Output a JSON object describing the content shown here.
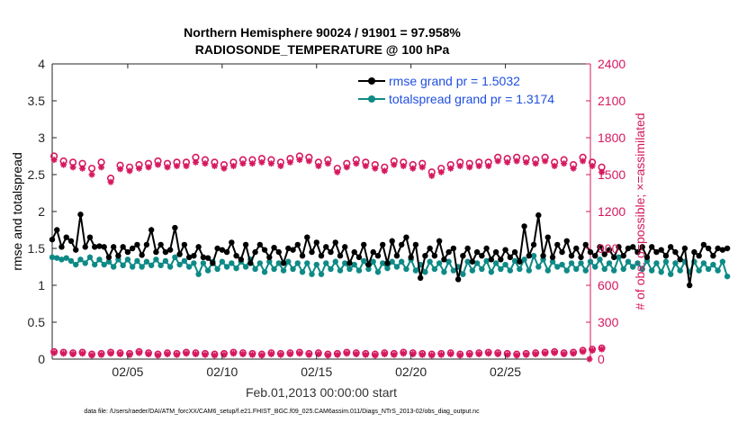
{
  "chart_data": {
    "type": "line",
    "title_line1": "Northern Hemisphere 90024 / 91901 = 97.958%",
    "title_line2": "RADIOSONDE_TEMPERATURE @ 100 hPa",
    "xlabel": "Feb.01,2013 00:00:00 start",
    "ylabel_left": "rmse and totalspread",
    "ylabel_right": "# of obs: o=possible; ×=assimilated",
    "ylim_left": [
      0,
      4
    ],
    "ylim_right": [
      0,
      2400
    ],
    "xlim": [
      1,
      29.5
    ],
    "x_ticks": [
      5,
      10,
      15,
      20,
      25
    ],
    "x_tick_labels": [
      "02/05",
      "02/10",
      "02/15",
      "02/20",
      "02/25"
    ],
    "y_left_ticks": [
      "0",
      "0.5",
      "1",
      "1.5",
      "2",
      "2.5",
      "3",
      "3.5",
      "4"
    ],
    "y_right_ticks": [
      "0",
      "300",
      "600",
      "900",
      "1200",
      "1500",
      "1800",
      "2100",
      "2400"
    ],
    "legend": [
      "rmse grand pr = 1.5032",
      "totalspread grand pr = 1.3174"
    ],
    "colors": {
      "rmse": "#000000",
      "spread": "#0e8a86",
      "obs": "#d6185f",
      "legend_text": "#1f4fe0"
    },
    "x_start": 1.0,
    "x_step": 0.25,
    "rmse": [
      1.62,
      1.75,
      1.52,
      1.65,
      1.6,
      1.48,
      1.96,
      1.52,
      1.65,
      1.52,
      1.53,
      1.52,
      1.38,
      1.52,
      1.4,
      1.52,
      1.45,
      1.5,
      1.55,
      1.41,
      1.55,
      1.75,
      1.45,
      1.55,
      1.45,
      1.48,
      1.78,
      1.42,
      1.55,
      1.38,
      1.4,
      1.52,
      1.38,
      1.37,
      1.3,
      1.5,
      1.48,
      1.45,
      1.58,
      1.4,
      1.35,
      1.55,
      1.3,
      1.45,
      1.55,
      1.48,
      1.38,
      1.51,
      1.45,
      1.3,
      1.5,
      1.48,
      1.55,
      1.4,
      1.65,
      1.45,
      1.58,
      1.4,
      1.52,
      1.45,
      1.58,
      1.4,
      1.52,
      1.3,
      1.45,
      1.38,
      1.55,
      1.28,
      1.45,
      1.4,
      1.55,
      1.3,
      1.6,
      1.4,
      1.55,
      1.65,
      1.38,
      1.55,
      1.1,
      1.4,
      1.5,
      1.4,
      1.6,
      1.35,
      1.45,
      1.5,
      1.08,
      1.4,
      1.5,
      1.32,
      1.45,
      1.4,
      1.5,
      1.35,
      1.45,
      1.35,
      1.48,
      1.38,
      1.45,
      1.32,
      1.8,
      1.4,
      1.55,
      1.95,
      1.4,
      1.65,
      1.38,
      1.55,
      1.45,
      1.6,
      1.4,
      1.5,
      1.38,
      1.55,
      1.45,
      1.4,
      1.52,
      1.42,
      1.48,
      1.38,
      1.52,
      1.4,
      1.5,
      1.52,
      1.45,
      1.52,
      1.38,
      1.52,
      1.45,
      1.48,
      1.4,
      1.52,
      1.45,
      1.35,
      1.5,
      1.0,
      1.45,
      1.4,
      1.55,
      1.5,
      1.4,
      1.5,
      1.48,
      1.5
    ],
    "spread": [
      1.38,
      1.37,
      1.35,
      1.37,
      1.33,
      1.28,
      1.35,
      1.3,
      1.38,
      1.28,
      1.35,
      1.28,
      1.32,
      1.25,
      1.35,
      1.27,
      1.35,
      1.25,
      1.33,
      1.25,
      1.32,
      1.27,
      1.35,
      1.27,
      1.33,
      1.25,
      1.38,
      1.28,
      1.33,
      1.25,
      1.3,
      1.15,
      1.3,
      1.2,
      1.32,
      1.22,
      1.32,
      1.25,
      1.3,
      1.23,
      1.32,
      1.25,
      1.35,
      1.22,
      1.3,
      1.18,
      1.32,
      1.22,
      1.3,
      1.2,
      1.32,
      1.22,
      1.3,
      1.18,
      1.3,
      1.15,
      1.28,
      1.15,
      1.3,
      1.22,
      1.32,
      1.2,
      1.3,
      1.22,
      1.28,
      1.2,
      1.33,
      1.22,
      1.32,
      1.18,
      1.3,
      1.23,
      1.32,
      1.25,
      1.32,
      1.22,
      1.35,
      1.2,
      1.28,
      1.18,
      1.32,
      1.22,
      1.3,
      1.18,
      1.32,
      1.2,
      1.25,
      1.15,
      1.32,
      1.2,
      1.3,
      1.22,
      1.33,
      1.18,
      1.3,
      1.22,
      1.28,
      1.2,
      1.33,
      1.22,
      1.35,
      1.2,
      1.4,
      1.25,
      1.35,
      1.2,
      1.32,
      1.25,
      1.28,
      1.2,
      1.3,
      1.22,
      1.3,
      1.2,
      1.32,
      1.25,
      1.35,
      1.22,
      1.3,
      1.2,
      1.38,
      1.22,
      1.32,
      1.25,
      1.3,
      1.22,
      1.33,
      1.2,
      1.3,
      1.18,
      1.32,
      1.15,
      1.3,
      1.2,
      1.32,
      1.18,
      1.32,
      1.2,
      1.3,
      1.22,
      1.28,
      1.2,
      1.32,
      1.12
    ],
    "obs_x_start": 1.1,
    "obs_step": 0.5,
    "possible": [
      1650,
      1610,
      1600,
      1590,
      1550,
      1600,
      1470,
      1575,
      1560,
      1580,
      1590,
      1610,
      1590,
      1600,
      1600,
      1640,
      1620,
      1600,
      1580,
      1600,
      1620,
      1620,
      1630,
      1620,
      1600,
      1630,
      1650,
      1640,
      1600,
      1620,
      1550,
      1590,
      1620,
      1600,
      1580,
      1560,
      1610,
      1600,
      1580,
      1590,
      1520,
      1550,
      1580,
      1600,
      1590,
      1600,
      1600,
      1640,
      1630,
      1640,
      1630,
      1620,
      1640,
      1600,
      1620,
      1580,
      1640,
      1600,
      1560
    ],
    "assimilated": [
      1620,
      1580,
      1560,
      1550,
      1500,
      1560,
      1440,
      1545,
      1530,
      1550,
      1560,
      1580,
      1560,
      1570,
      1570,
      1600,
      1590,
      1570,
      1550,
      1570,
      1590,
      1590,
      1600,
      1590,
      1570,
      1600,
      1620,
      1610,
      1570,
      1590,
      1520,
      1560,
      1590,
      1570,
      1550,
      1530,
      1580,
      1570,
      1550,
      1560,
      1490,
      1520,
      1550,
      1570,
      1560,
      1570,
      1570,
      1610,
      1600,
      1610,
      1600,
      1590,
      1610,
      1570,
      1590,
      1550,
      1610,
      1570,
      1520
    ],
    "bottom_obs_possible": [
      60,
      55,
      50,
      55,
      40,
      45,
      55,
      50,
      45,
      60,
      50,
      40,
      50,
      45,
      55,
      50,
      45,
      40,
      45,
      55,
      50,
      45,
      40,
      50,
      45,
      50,
      55,
      45,
      50,
      40,
      45,
      55,
      50,
      45,
      40,
      50,
      45,
      55,
      50,
      45,
      40,
      45,
      50,
      40,
      45,
      50,
      55,
      50,
      45,
      40,
      45,
      50,
      55,
      60,
      50,
      55,
      70,
      80,
      90
    ],
    "bottom_obs_assimilated": [
      50,
      45,
      40,
      45,
      30,
      35,
      45,
      40,
      35,
      50,
      40,
      30,
      40,
      35,
      45,
      40,
      35,
      30,
      35,
      45,
      40,
      35,
      30,
      40,
      35,
      40,
      45,
      35,
      40,
      30,
      35,
      45,
      40,
      35,
      30,
      40,
      35,
      45,
      40,
      35,
      30,
      35,
      40,
      30,
      35,
      40,
      45,
      40,
      35,
      30,
      35,
      40,
      45,
      50,
      40,
      45,
      60,
      70,
      80
    ],
    "bottom_last": 0
  },
  "footer": "data file: /Users/raeder/DAI/ATM_forcXX/CAM6_setup/f.e21.FHIST_BGC.f09_025.CAM6assim.011/Diags_NTrS_2013-02/obs_diag_output.nc"
}
